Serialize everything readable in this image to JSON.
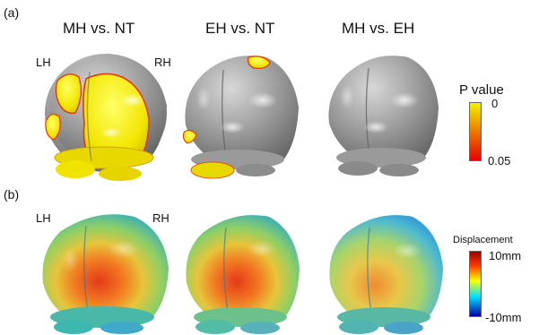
{
  "panels": [
    {
      "letter": "(a)",
      "columns": [
        "MH vs. NT",
        "EH vs. NT",
        "MH vs. EH"
      ],
      "hemispheres": {
        "left": "LH",
        "right": "RH"
      },
      "colorbar": {
        "title": "P value",
        "top_label": "0",
        "bottom_label": "0.05",
        "colors": [
          "#f2f200",
          "#e60000"
        ]
      }
    },
    {
      "letter": "(b)",
      "hemispheres": {
        "left": "LH",
        "right": "RH"
      },
      "colorbar": {
        "title": "Displacement",
        "top_label": "10mm",
        "bottom_label": "-10mm",
        "colors": [
          "#9a0000",
          "#ff3a00",
          "#ffff00",
          "#00e0ff",
          "#0000a8"
        ]
      }
    }
  ]
}
